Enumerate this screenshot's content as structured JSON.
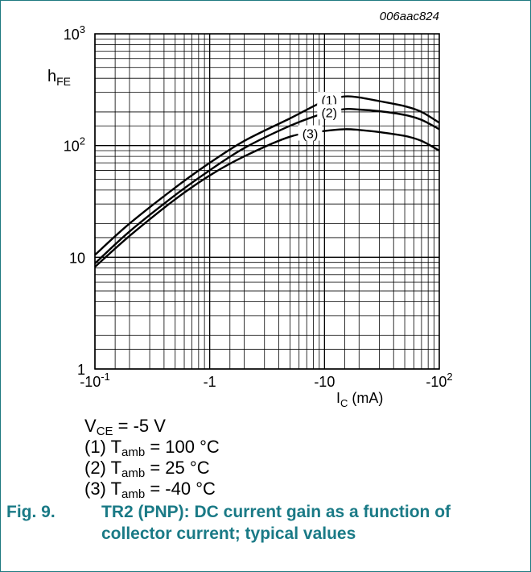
{
  "figure_code": "006aac824",
  "caption": {
    "number": "Fig. 9.",
    "text": "TR2 (PNP): DC current gain as a function of collector current; typical values"
  },
  "notes": {
    "vce": {
      "symbol": "V",
      "sub": "CE",
      "value": " = -5 V"
    },
    "curves": [
      {
        "prefix": "(1) T",
        "sub": "amb",
        "value": " = 100 °C"
      },
      {
        "prefix": "(2) T",
        "sub": "amb",
        "value": " = 25 °C"
      },
      {
        "prefix": "(3) T",
        "sub": "amb",
        "value": " = -40 °C"
      }
    ]
  },
  "chart_data": {
    "type": "line",
    "xscale": "log",
    "yscale": "log",
    "xlim": [
      -0.1,
      -100
    ],
    "ylim": [
      1,
      1000
    ],
    "grid": true,
    "xlabel": {
      "symbol": "I",
      "sub": "C",
      "unit": " (mA)"
    },
    "ylabel": {
      "symbol": "h",
      "sub": "FE"
    },
    "x_ticks": [
      {
        "value": -0.1,
        "base": "-10",
        "exp": "-1"
      },
      {
        "value": -1,
        "base": "-1",
        "exp": ""
      },
      {
        "value": -10,
        "base": "-10",
        "exp": ""
      },
      {
        "value": -100,
        "base": "-10",
        "exp": "2"
      }
    ],
    "y_ticks": [
      {
        "value": 1,
        "base": "1",
        "exp": ""
      },
      {
        "value": 10,
        "base": "10",
        "exp": ""
      },
      {
        "value": 100,
        "base": "10",
        "exp": "2"
      },
      {
        "value": 1000,
        "base": "10",
        "exp": "3"
      }
    ],
    "series": [
      {
        "name": "(1)",
        "label_at": -11,
        "x": [
          -0.1,
          -0.2,
          -0.5,
          -1,
          -2,
          -5,
          -10,
          -15,
          -20,
          -30,
          -50,
          -70,
          -100
        ],
        "y": [
          10.5,
          20,
          42,
          70,
          110,
          175,
          250,
          275,
          270,
          250,
          225,
          200,
          160
        ]
      },
      {
        "name": "(2)",
        "label_at": -11,
        "x": [
          -0.1,
          -0.2,
          -0.5,
          -1,
          -2,
          -5,
          -10,
          -15,
          -20,
          -30,
          -50,
          -70,
          -100
        ],
        "y": [
          8.8,
          17,
          36,
          60,
          95,
          150,
          195,
          212,
          210,
          203,
          188,
          170,
          140
        ]
      },
      {
        "name": "(3)",
        "label_at": -7.5,
        "x": [
          -0.1,
          -0.2,
          -0.5,
          -1,
          -2,
          -5,
          -10,
          -15,
          -20,
          -30,
          -50,
          -70,
          -100
        ],
        "y": [
          8.2,
          15.5,
          33,
          54,
          80,
          120,
          135,
          140,
          138,
          132,
          122,
          110,
          90
        ]
      }
    ]
  }
}
